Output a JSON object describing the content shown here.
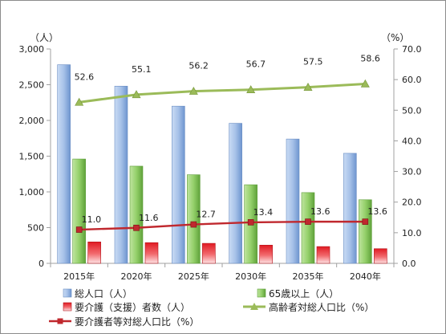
{
  "chart_data": {
    "type": "bar",
    "categories": [
      "2015年",
      "2020年",
      "2025年",
      "2030年",
      "2035年",
      "2040年"
    ],
    "left_axis": {
      "unit": "（人）",
      "range": [
        0,
        3000
      ],
      "ticks": [
        "0",
        "500",
        "1,000",
        "1,500",
        "2,000",
        "2,500",
        "3,000"
      ]
    },
    "right_axis": {
      "unit": "（%）",
      "range": [
        0,
        70
      ],
      "ticks": [
        "0.0",
        "10.0",
        "20.0",
        "30.0",
        "40.0",
        "50.0",
        "60.0",
        "70.0"
      ]
    },
    "grid": false,
    "legend_position": "bottom",
    "series": [
      {
        "name": "総人口（人）",
        "type": "bar",
        "axis": "left",
        "values": [
          2780,
          2480,
          2200,
          1960,
          1740,
          1540
        ],
        "color": "#8fb2e2"
      },
      {
        "name": "65歳以上（人）",
        "type": "bar",
        "axis": "left",
        "values": [
          1460,
          1360,
          1240,
          1100,
          990,
          890
        ],
        "color": "#8ccc5e"
      },
      {
        "name": "要介護（支援）者数（人）",
        "type": "bar",
        "axis": "left",
        "values": [
          300,
          290,
          280,
          255,
          235,
          205
        ],
        "color": "#e8282e"
      },
      {
        "name": "高齢者対総人口比（%）",
        "type": "line",
        "axis": "right",
        "values": [
          52.6,
          55.1,
          56.2,
          56.7,
          57.5,
          58.6
        ],
        "labels": [
          "52.6",
          "55.1",
          "56.2",
          "56.7",
          "57.5",
          "58.6"
        ],
        "color": "#9bbb59",
        "marker": "triangle"
      },
      {
        "name": "要介護者等対総人口比（%）",
        "type": "line",
        "axis": "right",
        "values": [
          11.0,
          11.6,
          12.7,
          13.4,
          13.6,
          13.6
        ],
        "labels": [
          "11.0",
          "11.6",
          "12.7",
          "13.4",
          "13.6",
          "13.6"
        ],
        "color": "#c0282e",
        "marker": "square"
      }
    ]
  }
}
